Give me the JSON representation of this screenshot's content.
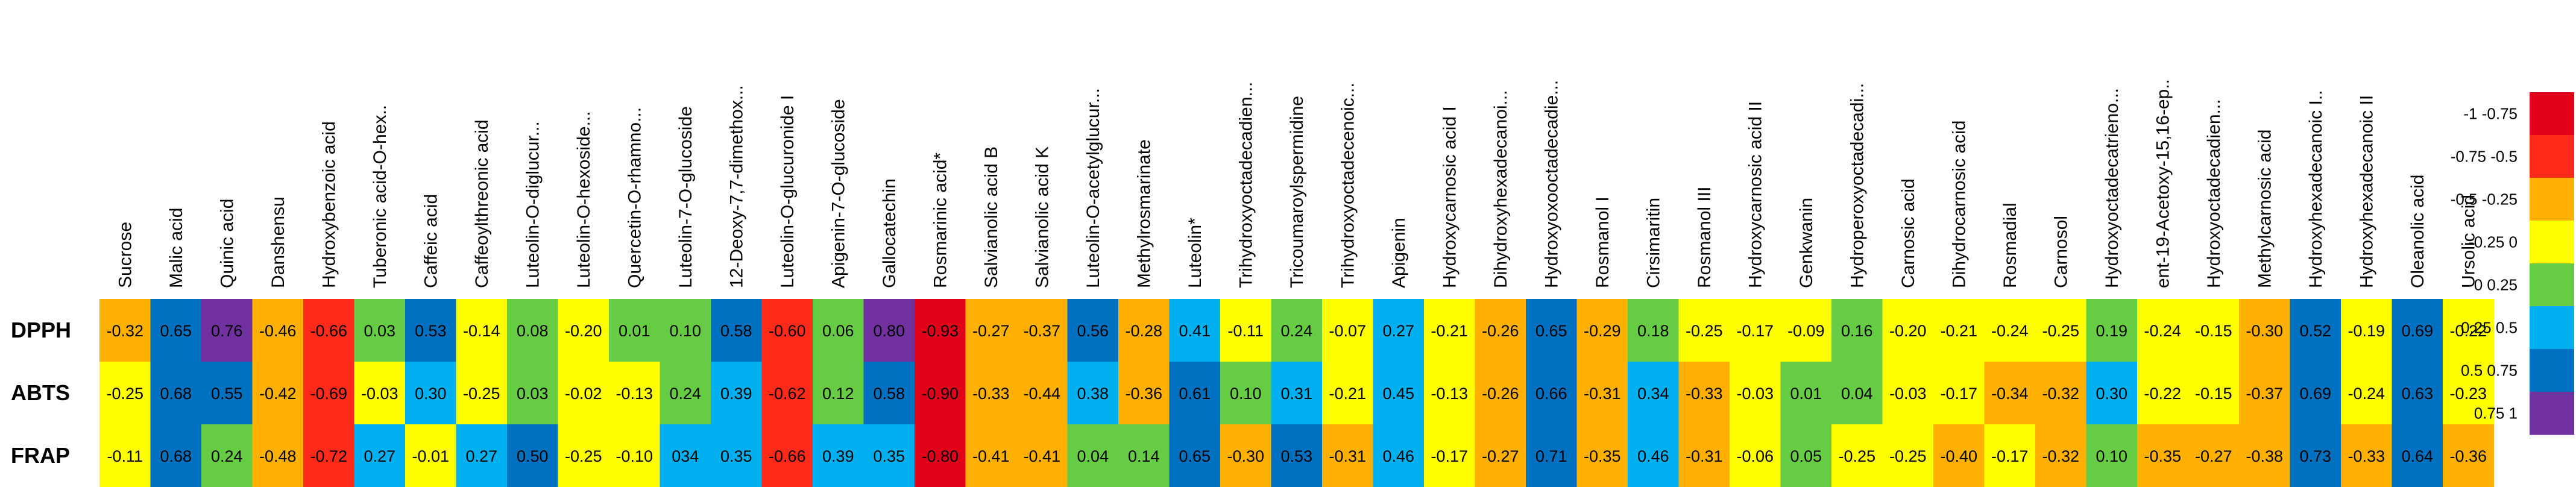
{
  "chart_data": {
    "type": "heatmap",
    "rows": [
      "DPPH",
      "ABTS",
      "FRAP"
    ],
    "columns": [
      "Sucrose",
      "Malic acid",
      "Quinic acid",
      "Danshensu",
      "Hydroxybenzoic acid",
      "Tuberonic acid-O-hex..",
      "Caffeic acid",
      "Caffeoylthreonic acid",
      "Luteolin-O-diglucur...",
      "Luteolin-O-hexoside...",
      "Quercetin-O-rhamno...",
      "Luteolin-7-O-glucoside",
      "12-Deoxy-7,7-dimethox...",
      "Luteolin-O-glucuronide I",
      "Apigenin-7-O-glucoside",
      "Gallocatechin",
      "Rosmarinic acid*",
      "Salvianolic acid B",
      "Salvianolic acid K",
      "Luteolin-O-acetylglucur...",
      "Methylrosmarinate",
      "Luteolin*",
      "Trihydroxyoctadecadien...",
      "Tricoumaroylspermidine",
      "Trihydroxyoctadecenoic...",
      "Apigenin",
      "Hydroxycarnosic acid I",
      "Dihydroxyhexadecanoi...",
      "Hydroxyoxooctadecadie...",
      "Rosmanol I",
      "Cirsimaritin",
      "Rosmanol III",
      "Hydroxycarnosic acid II",
      "Genkwanin",
      "Hydroperoxyoctadecadi...",
      "Carnosic acid",
      "Dihydrocarnosic acid",
      "Rosmadial",
      "Carnosol",
      "Hydroxyoctadecatrieno...",
      "ent-19-Acetoxy-15,16-ep..",
      "Hydroxyoctadecadien...",
      "Methylcarnosic acid",
      "Hydroxyhexadecanoic I..",
      "Hydroxyhexadecanoic II",
      "Oleanolic acid",
      "Ursolic acid"
    ],
    "values": [
      [
        "-0.32",
        "0.65",
        "0.76",
        "-0.46",
        "-0.66",
        "0.03",
        "0.53",
        "-0.14",
        "0.08",
        "-0.20",
        "0.01",
        "0.10",
        "0.58",
        "-0.60",
        "0.06",
        "0.80",
        "-0.93",
        "-0.27",
        "-0.37",
        "0.56",
        "-0.28",
        "0.41",
        "-0.11",
        "0.24",
        "-0.07",
        "0.27",
        "-0.21",
        "-0.26",
        "0.65",
        "-0.29",
        "0.18",
        "-0.25",
        "-0.17",
        "-0.09",
        "0.16",
        "-0.20",
        "-0.21",
        "-0.24",
        "-0.25",
        "0.19",
        "-0.24",
        "-0.15",
        "-0.30",
        "0.52",
        "-0.19",
        "0.69",
        "-0.22"
      ],
      [
        "-0.25",
        "0.68",
        "0.55",
        "-0.42",
        "-0.69",
        "-0.03",
        "0.30",
        "-0.25",
        "0.03",
        "-0.02",
        "-0.13",
        "0.24",
        "0.39",
        "-0.62",
        "0.12",
        "0.58",
        "-0.90",
        "-0.33",
        "-0.44",
        "0.38",
        "-0.36",
        "0.61",
        "0.10",
        "0.31",
        "-0.21",
        "0.45",
        "-0.13",
        "-0.26",
        "0.66",
        "-0.31",
        "0.34",
        "-0.33",
        "-0.03",
        "0.01",
        "0.04",
        "-0.03",
        "-0.17",
        "-0.34",
        "-0.32",
        "0.30",
        "-0.22",
        "-0.15",
        "-0.37",
        "0.69",
        "-0.24",
        "0.63",
        "-0.23"
      ],
      [
        "-0.11",
        "0.68",
        "0.24",
        "-0.48",
        "-0.72",
        "0.27",
        "-0.01",
        "0.27",
        "0.50",
        "-0.25",
        "-0.10",
        "034",
        "0.35",
        "-0.66",
        "0.39",
        "0.35",
        "-0.80",
        "-0.41",
        "-0.41",
        "0.04",
        "0.14",
        "0.65",
        "-0.30",
        "0.53",
        "-0.31",
        "0.46",
        "-0.17",
        "-0.27",
        "0.71",
        "-0.35",
        "0.46",
        "-0.31",
        "-0.06",
        "0.05",
        "-0.25",
        "-0.25",
        "-0.40",
        "-0.17",
        "-0.32",
        "0.10",
        "-0.35",
        "-0.27",
        "-0.38",
        "0.73",
        "-0.33",
        "0.64",
        "-0.36"
      ]
    ],
    "legend": {
      "bins": [
        {
          "label": "-1 -0.75",
          "color": "#e3001b"
        },
        {
          "label": "-0.75 -0.5",
          "color": "#ff2a1a"
        },
        {
          "label": "-0.5 -0.25",
          "color": "#ffb000"
        },
        {
          "label": "-0.25 0",
          "color": "#ffff00"
        },
        {
          "label": "0 0.25",
          "color": "#66cc44"
        },
        {
          "label": "0.25 0.5",
          "color": "#00b0f0"
        },
        {
          "label": "0.5 0.75",
          "color": "#0070c0"
        },
        {
          "label": "0.75 1",
          "color": "#7030a0"
        }
      ]
    }
  }
}
